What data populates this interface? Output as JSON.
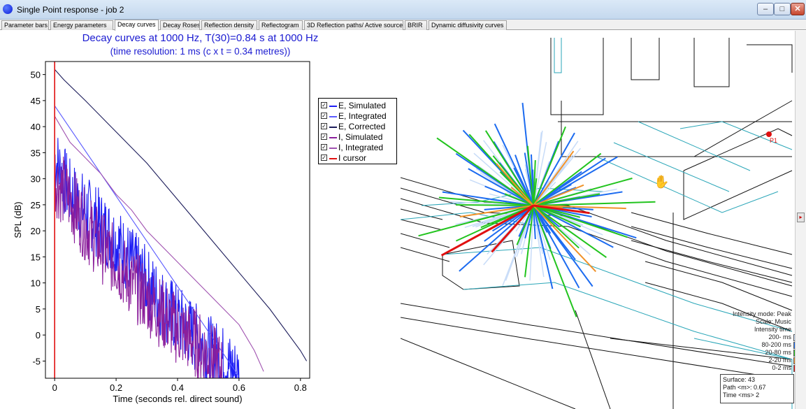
{
  "window": {
    "title": "Single Point response - job 2",
    "min_label": "–",
    "max_label": "□",
    "close_label": "✕"
  },
  "tabs": [
    {
      "label": "Parameter bars",
      "active": false
    },
    {
      "label": "Energy parameters",
      "active": false
    },
    {
      "label": "Decay curves",
      "active": true
    },
    {
      "label": "Decay Roses",
      "active": false
    },
    {
      "label": "Reflection density",
      "active": false
    },
    {
      "label": "Reflectogram",
      "active": false
    },
    {
      "label": "3D Reflection paths/ Active sources",
      "active": false
    },
    {
      "label": "BRIR",
      "active": false
    },
    {
      "label": "Dynamic diffusivity curves",
      "active": false
    }
  ],
  "chart_data": {
    "type": "line",
    "title": "Decay curves at 1000 Hz, T(30)=0.84  s at 1000 Hz",
    "subtitle": "(time resolution: 1 ms (c x t = 0.34 metres))",
    "xlabel": "Time (seconds rel. direct sound)",
    "ylabel": "SPL (dB)",
    "xlim": [
      -0.03,
      0.83
    ],
    "ylim": [
      -8.3,
      52.5
    ],
    "x_ticks": [
      0,
      0.2,
      0.4,
      0.6,
      0.8
    ],
    "x_tick_labels": [
      "0",
      "0.2",
      "0.4",
      "0.6",
      "0.8"
    ],
    "y_ticks": [
      -5,
      0,
      5,
      10,
      15,
      20,
      25,
      30,
      35,
      40,
      45,
      50
    ],
    "y_tick_labels": [
      "-5",
      "0",
      "5",
      "10",
      "15",
      "20",
      "25",
      "30",
      "35",
      "40",
      "45",
      "50"
    ],
    "series": [
      {
        "name": "E, Simulated",
        "color": "#1f1ff5",
        "kind": "noisy",
        "x": [
          0.0,
          0.05,
          0.1,
          0.15,
          0.2,
          0.25,
          0.3,
          0.35,
          0.4,
          0.45,
          0.5,
          0.55,
          0.6
        ],
        "y": [
          34,
          27,
          24,
          21,
          18,
          14,
          10,
          6,
          3,
          0,
          -3,
          -5,
          -8
        ]
      },
      {
        "name": "E, Integrated",
        "color": "#5a5aff",
        "kind": "smooth",
        "x": [
          0.0,
          0.6
        ],
        "y": [
          44,
          -8
        ]
      },
      {
        "name": "E, Corrected",
        "color": "#1c1c5a",
        "kind": "smooth",
        "x": [
          0.0,
          0.03,
          0.1,
          0.2,
          0.3,
          0.4,
          0.5,
          0.6,
          0.7,
          0.8,
          0.82
        ],
        "y": [
          51,
          49,
          45,
          39,
          33,
          26,
          19,
          12,
          5,
          -3,
          -5
        ]
      },
      {
        "name": "I, Simulated",
        "color": "#8b1f9b",
        "kind": "noisy",
        "x": [
          0.0,
          0.05,
          0.1,
          0.15,
          0.2,
          0.25,
          0.3,
          0.35,
          0.4,
          0.45,
          0.5,
          0.55
        ],
        "y": [
          30,
          26,
          21,
          17,
          14,
          10,
          7,
          4,
          1,
          -1,
          -4,
          -7
        ]
      },
      {
        "name": "I, Integrated",
        "color": "#a052b0",
        "kind": "smooth",
        "x": [
          0.0,
          0.05,
          0.1,
          0.15,
          0.2,
          0.25,
          0.3,
          0.35,
          0.4,
          0.45,
          0.5,
          0.55,
          0.6,
          0.65,
          0.68
        ],
        "y": [
          42,
          37,
          34,
          31,
          27,
          24,
          20,
          17,
          14,
          11,
          8,
          5,
          2,
          -3,
          -7
        ]
      },
      {
        "name": "I cursor",
        "color": "#e01010",
        "kind": "vline",
        "x": [
          0.0,
          0.0
        ],
        "y": [
          -8.3,
          52.5
        ]
      }
    ],
    "legend_position": "top-right"
  },
  "viewport": {
    "receiver_label": "P1",
    "legend": [
      {
        "label": "Intensity mode: Peak",
        "color": ""
      },
      {
        "label": "Scale: Music",
        "color": ""
      },
      {
        "label": "Intensity time",
        "color": ""
      },
      {
        "label": "200- ms",
        "color": "#c8dcf8"
      },
      {
        "label": "80-200 ms",
        "color": "#1c6bf0"
      },
      {
        "label": "20-80 ms",
        "color": "#22c41e"
      },
      {
        "label": "2-20 ms",
        "color": "#f0922a"
      },
      {
        "label": "0-2 ms",
        "color": "#e01010"
      }
    ],
    "info": {
      "surface": "Surface:      43",
      "path": "Path <m>:  0.67",
      "time": "Time <ms> 2"
    },
    "side_handle": "▸"
  }
}
